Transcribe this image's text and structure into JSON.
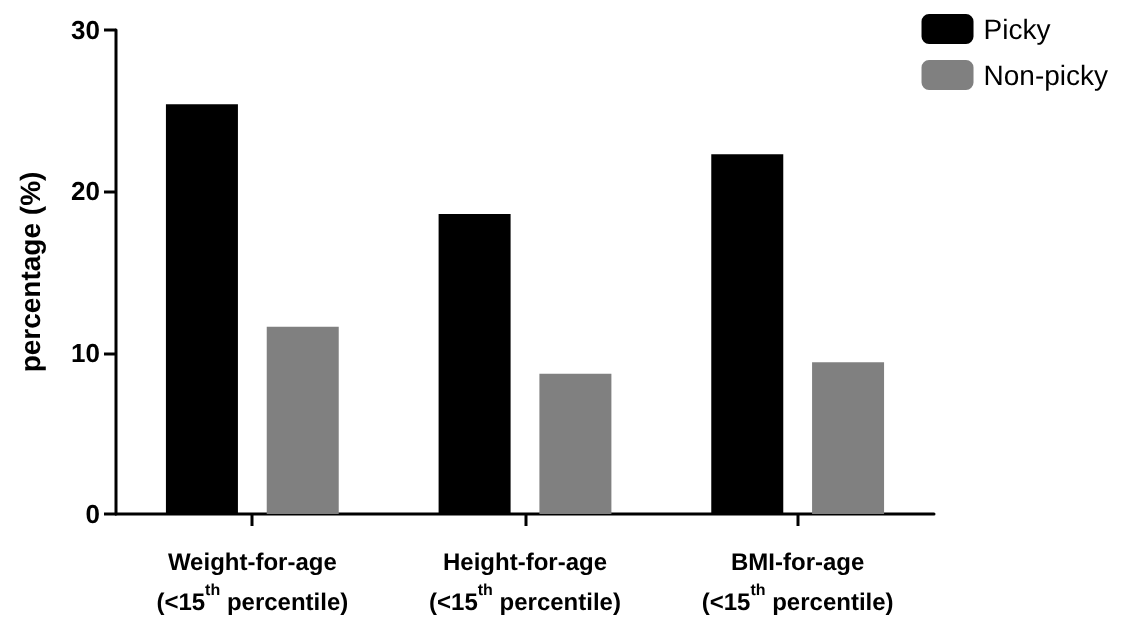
{
  "chart_data": {
    "type": "bar",
    "ylabel": "percentage (%)",
    "categories": [
      "Weight-for-age\n(<15$^{th}$ percentile)",
      "Height-for-age\n(<15$^{th}$ percentile)",
      "BMI-for-age\n(<15$^{th}$ percentile)"
    ],
    "series": [
      {
        "name": "Picky",
        "color": "#000000",
        "values": [
          25.4,
          18.6,
          22.3
        ]
      },
      {
        "name": "Non-picky",
        "color": "#808080",
        "values": [
          11.6,
          8.7,
          9.4
        ]
      }
    ],
    "ylim": [
      0,
      30
    ],
    "yticks": [
      0,
      10,
      20,
      30
    ],
    "grid": false,
    "legend": "top right"
  }
}
